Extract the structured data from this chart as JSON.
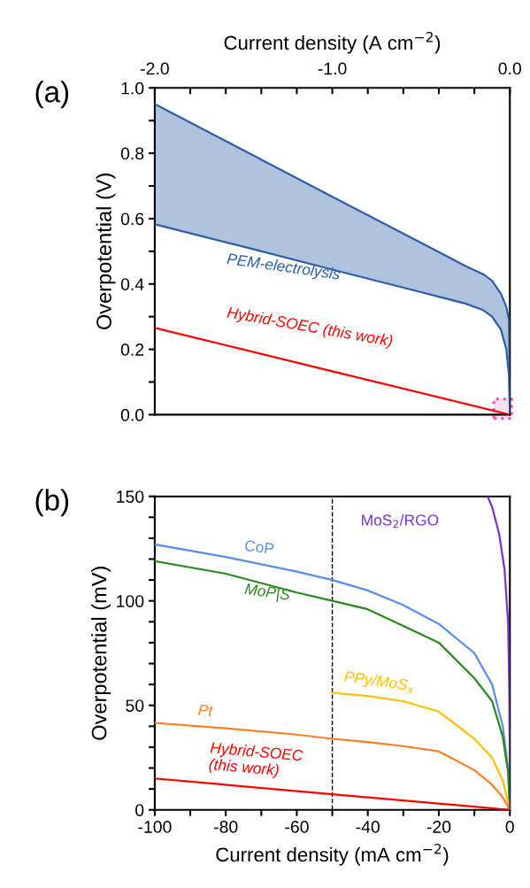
{
  "chart_data": [
    {
      "type": "line",
      "title": "(a)",
      "xlabel": "Current density (A cm$^{−2}$)",
      "ylabel": "Overpotential (V)",
      "xlim": [
        -2.0,
        0.0
      ],
      "xticks": [
        {
          "value": -2.0,
          "label": "-2.0"
        },
        {
          "value": -1.8,
          "label": null
        },
        {
          "value": -1.6,
          "label": null
        },
        {
          "value": -1.4,
          "label": null
        },
        {
          "value": -1.2,
          "label": null
        },
        {
          "value": -1.0,
          "label": "-1.0"
        },
        {
          "value": -0.8,
          "label": null
        },
        {
          "value": -0.6,
          "label": null
        },
        {
          "value": -0.4,
          "label": null
        },
        {
          "value": -0.2,
          "label": null
        },
        {
          "value": 0.0,
          "label": "0.0"
        }
      ],
      "ylim": [
        0.0,
        1.0
      ],
      "yticks": [
        {
          "value": 0.0,
          "label": "0.0"
        },
        {
          "value": 0.1,
          "label": null
        },
        {
          "value": 0.2,
          "label": "0.2"
        },
        {
          "value": 0.3,
          "label": null
        },
        {
          "value": 0.4,
          "label": "0.4"
        },
        {
          "value": 0.5,
          "label": null
        },
        {
          "value": 0.6,
          "label": "0.6"
        },
        {
          "value": 0.7,
          "label": null
        },
        {
          "value": 0.8,
          "label": "0.8"
        },
        {
          "value": 0.9,
          "label": null
        },
        {
          "value": 1.0,
          "label": "1.0"
        }
      ],
      "series": [
        {
          "color": "#2e5ea8",
          "x": [
            -2.0,
            -1.5,
            -1.0,
            -0.5,
            -0.25,
            -0.15,
            -0.1,
            -0.05,
            -0.02,
            -0.005,
            0.0
          ],
          "values": [
            0.951,
            0.809,
            0.667,
            0.526,
            0.455,
            0.43,
            0.41,
            0.37,
            0.33,
            0.29,
            0.0
          ],
          "lower": [
            0.583,
            0.514,
            0.444,
            0.375,
            0.34,
            0.32,
            0.3,
            0.26,
            0.2,
            0.12,
            0.0
          ],
          "upper": [
            0.951,
            0.809,
            0.667,
            0.526,
            0.455,
            0.43,
            0.41,
            0.37,
            0.33,
            0.29,
            0.0
          ]
        },
        {
          "color": "#2e5ea8",
          "x": [
            -2.0,
            -1.5,
            -1.0,
            -0.5,
            -0.25,
            -0.15,
            -0.1,
            -0.05,
            -0.02,
            -0.005,
            0.0
          ],
          "values": [
            0.583,
            0.514,
            0.444,
            0.375,
            0.34,
            0.32,
            0.3,
            0.26,
            0.2,
            0.12,
            0.0
          ]
        },
        {
          "color": "#ff0000",
          "x": [
            -2.0,
            -1.0,
            0.0
          ],
          "values": [
            0.266,
            0.133,
            0.0
          ]
        }
      ],
      "annotations": [
        "PEM-electrolysis",
        {
          "text": "Hybrid-SOEC (this work)",
          "x": -1.6,
          "y": 0.213
        }
      ]
    },
    {
      "type": "line",
      "title": "(b)",
      "xlabel": "Current density (mA cm$^{−2}$)",
      "ylabel": "Overpotential (mV)",
      "xlim": [
        -100,
        0
      ],
      "xticks": [
        {
          "value": -100,
          "label": "-100"
        },
        {
          "value": -90,
          "label": null
        },
        {
          "value": -80,
          "label": "-80"
        },
        {
          "value": -70,
          "label": null
        },
        {
          "value": -60,
          "label": "-60"
        },
        {
          "value": -50,
          "label": null
        },
        {
          "value": -40,
          "label": "-40"
        },
        {
          "value": -30,
          "label": null
        },
        {
          "value": -20,
          "label": "-20"
        },
        {
          "value": -10,
          "label": null
        },
        0
      ],
      "ylim": [
        0,
        150
      ],
      "yticks": [
        0,
        {
          "value": 10,
          "label": null
        },
        {
          "value": 20,
          "label": null
        },
        {
          "value": 30,
          "label": null
        },
        {
          "value": 40,
          "label": null
        },
        50,
        {
          "value": 60,
          "label": null
        },
        {
          "value": 70,
          "label": null
        },
        {
          "value": 80,
          "label": null
        },
        {
          "value": 90,
          "label": null
        },
        100,
        {
          "value": 110,
          "label": null
        },
        {
          "value": 120,
          "label": null
        },
        {
          "value": 130,
          "label": null
        },
        {
          "value": 140,
          "label": null
        },
        150
      ],
      "ref_lines": [
        {
          "axis": "x",
          "value": -50,
          "color": "#000000",
          "line_style": "dashed"
        }
      ],
      "series": [
        {
          "color": "#5b8ee6",
          "x": [
            -100,
            -80,
            -60,
            -50,
            -40,
            -30,
            -20,
            -10,
            -5,
            -2,
            -0.5,
            0
          ],
          "values": [
            127,
            121,
            114,
            110,
            105,
            98,
            89,
            75,
            60,
            40,
            20,
            0
          ]
        },
        {
          "color": "#2a8a1f",
          "x": [
            -100,
            -80,
            -60,
            -50,
            -40,
            -30,
            -20,
            -10,
            -5,
            -2,
            -0.5,
            0
          ],
          "values": [
            119,
            113,
            104,
            100,
            96,
            88,
            80,
            63,
            52,
            35,
            18,
            0
          ]
        },
        {
          "color": "#ffc000",
          "x": [
            -50,
            -40,
            -30,
            -20,
            -10,
            -5,
            -2,
            0
          ],
          "values": [
            56,
            54.5,
            52,
            47,
            34,
            25,
            14,
            0
          ]
        },
        {
          "color": "#ff7f27",
          "x": [
            -100,
            -80,
            -60,
            -50,
            -40,
            -30,
            -20,
            -10,
            -5,
            -2,
            0
          ],
          "values": [
            41.6,
            39,
            36,
            34,
            32.5,
            30.5,
            28,
            19,
            12,
            6,
            0
          ]
        },
        {
          "color": "#ff0000",
          "x": [
            -100,
            -50,
            0
          ],
          "values": [
            15,
            7.5,
            0
          ]
        },
        {
          "color": "#7a2fd0",
          "x": [
            -6.3,
            -5,
            -3,
            -1.5,
            -0.5,
            -0.2,
            -0.05,
            0
          ],
          "values": [
            150,
            145,
            132,
            115,
            90,
            60,
            30,
            0
          ]
        }
      ],
      "annotations": [
        {
          "text": "CoP",
          "x": -75,
          "y": 119.25
        },
        {
          "text": "MoP|S",
          "x": -75,
          "y": 110.75
        },
        {
          "text": "PPy/MoS$_{x}$",
          "x": -47,
          "y": 55.7
        },
        {
          "text": "Pt",
          "x": -88,
          "y": 40
        },
        {
          "text": "Hybrid-SOEC\n(this work)",
          "x": -85,
          "y": 12.75
        },
        "MoS$_{2}$/RGO"
      ]
    }
  ]
}
